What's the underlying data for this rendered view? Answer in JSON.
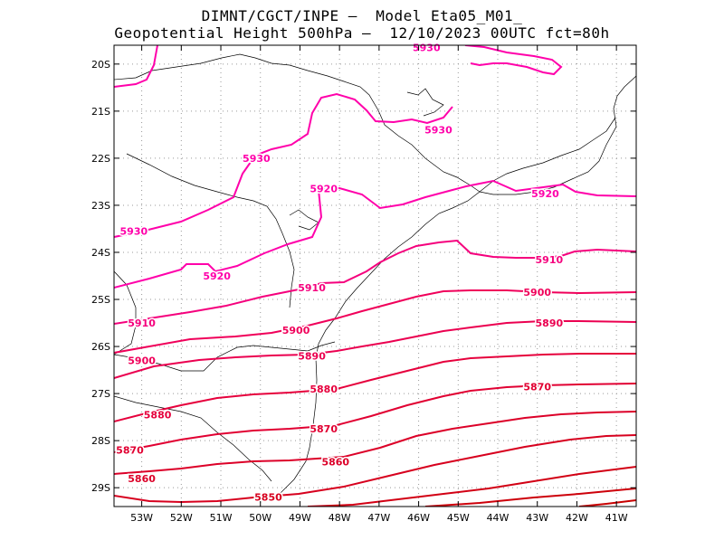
{
  "title": {
    "line1": "DIMNT/CGCT/INPE –  Model Eta05_M01_",
    "line2": "Geopotential Height 500hPa –  12/10/2023 00UTC fct=80h"
  },
  "map": {
    "lon_range": [
      -53.7,
      -40.5
    ],
    "lat_range": [
      -29.4,
      -19.6
    ],
    "lat_ticks": [
      "20S",
      "21S",
      "22S",
      "23S",
      "24S",
      "25S",
      "26S",
      "27S",
      "28S",
      "29S"
    ],
    "lon_ticks": [
      "53W",
      "52W",
      "51W",
      "50W",
      "49W",
      "48W",
      "47W",
      "46W",
      "45W",
      "44W",
      "43W",
      "42W",
      "41W"
    ],
    "grid": true,
    "border_color": "#000000",
    "contour_labels": [
      {
        "text": "5930",
        "lon": -45.8,
        "lat": -19.65,
        "color": "#ff00aa"
      },
      {
        "text": "5930",
        "lon": -45.5,
        "lat": -21.4,
        "color": "#ff00aa"
      },
      {
        "text": "5930",
        "lon": -50.1,
        "lat": -22.0,
        "color": "#ff00aa"
      },
      {
        "text": "5930",
        "lon": -53.2,
        "lat": -23.55,
        "color": "#ff00aa"
      },
      {
        "text": "5920",
        "lon": -48.4,
        "lat": -22.65,
        "color": "#ff00aa"
      },
      {
        "text": "5920",
        "lon": -42.8,
        "lat": -22.75,
        "color": "#ff00aa"
      },
      {
        "text": "5920",
        "lon": -51.1,
        "lat": -24.5,
        "color": "#ff00aa"
      },
      {
        "text": "5910",
        "lon": -48.7,
        "lat": -24.75,
        "color": "#f5007d"
      },
      {
        "text": "5910",
        "lon": -42.7,
        "lat": -24.15,
        "color": "#f5007d"
      },
      {
        "text": "5910",
        "lon": -53.0,
        "lat": -25.5,
        "color": "#f5007d"
      },
      {
        "text": "5900",
        "lon": -49.1,
        "lat": -25.65,
        "color": "#f0005a"
      },
      {
        "text": "5900",
        "lon": -43.0,
        "lat": -24.85,
        "color": "#f0005a"
      },
      {
        "text": "5900",
        "lon": -53.0,
        "lat": -26.3,
        "color": "#f0005a"
      },
      {
        "text": "5890",
        "lon": -48.7,
        "lat": -26.2,
        "color": "#eb0050"
      },
      {
        "text": "5890",
        "lon": -42.7,
        "lat": -25.5,
        "color": "#eb0050"
      },
      {
        "text": "5880",
        "lon": -48.4,
        "lat": -26.9,
        "color": "#e6003c"
      },
      {
        "text": "5880",
        "lon": -52.6,
        "lat": -27.45,
        "color": "#e6003c"
      },
      {
        "text": "5870",
        "lon": -48.4,
        "lat": -27.75,
        "color": "#e10032"
      },
      {
        "text": "5870",
        "lon": -43.0,
        "lat": -26.85,
        "color": "#e10032"
      },
      {
        "text": "5870",
        "lon": -53.3,
        "lat": -28.2,
        "color": "#e10032"
      },
      {
        "text": "5860",
        "lon": -48.1,
        "lat": -28.45,
        "color": "#dc0028"
      },
      {
        "text": "5860",
        "lon": -53.0,
        "lat": -28.8,
        "color": "#dc0028"
      },
      {
        "text": "5850",
        "lon": -49.8,
        "lat": -29.2,
        "color": "#d7001e"
      }
    ]
  }
}
